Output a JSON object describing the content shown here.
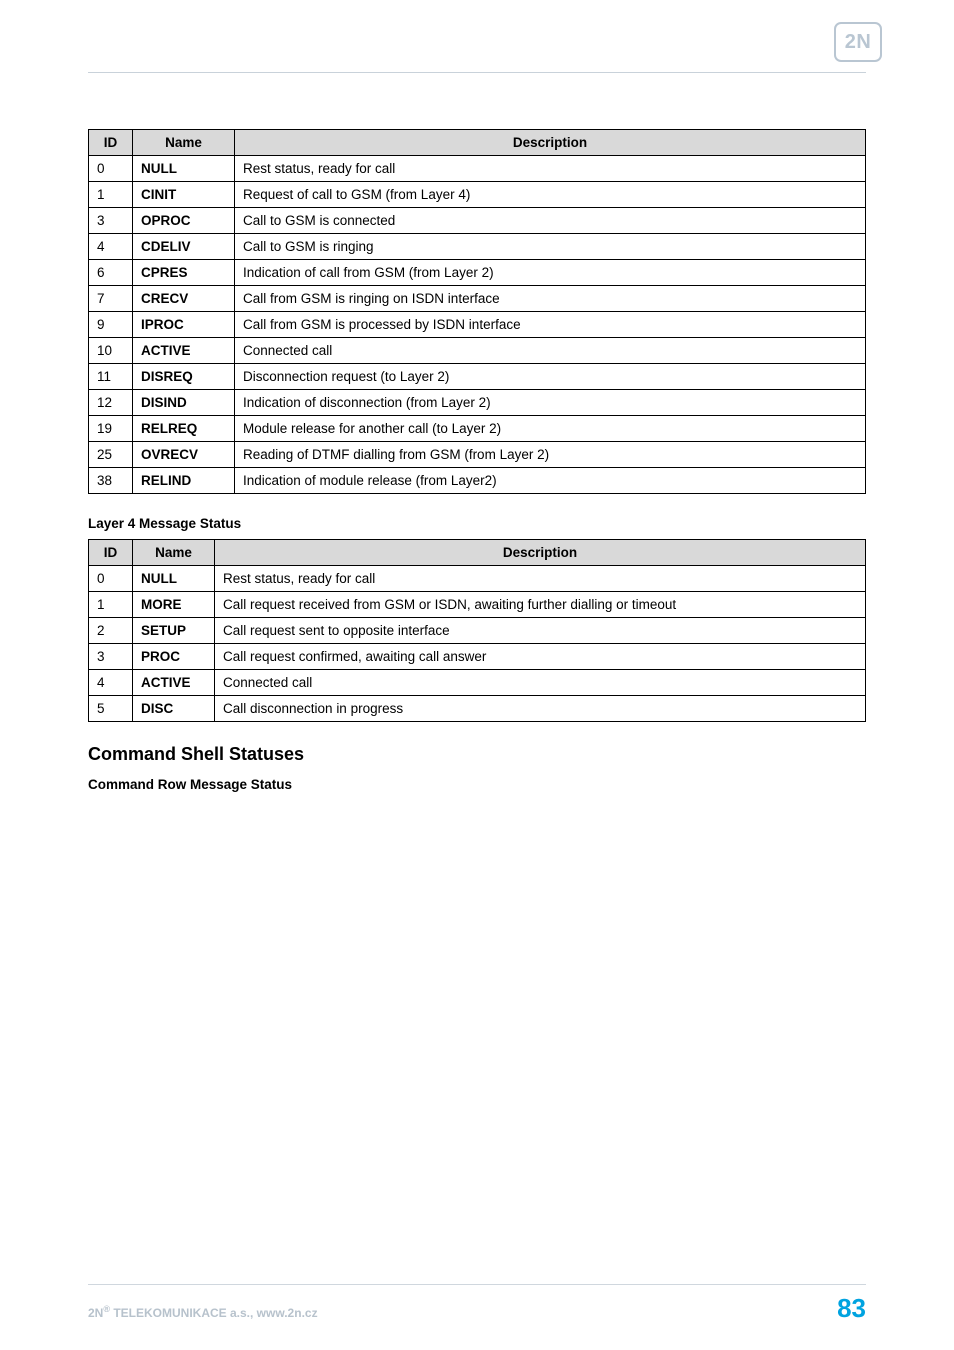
{
  "logo_text": "2N",
  "table1": {
    "headers": [
      "ID",
      "Name",
      "Description"
    ],
    "rows": [
      {
        "id": "0",
        "name": "NULL",
        "desc": "Rest status, ready for call"
      },
      {
        "id": "1",
        "name": "CINIT",
        "desc": "Request of call to GSM (from Layer 4)"
      },
      {
        "id": "3",
        "name": "OPROC",
        "desc": "Call to GSM is connected"
      },
      {
        "id": "4",
        "name": "CDELIV",
        "desc": "Call to GSM is ringing"
      },
      {
        "id": "6",
        "name": "CPRES",
        "desc": "Indication of call from GSM (from Layer 2)"
      },
      {
        "id": "7",
        "name": "CRECV",
        "desc": "Call from GSM is ringing on ISDN interface"
      },
      {
        "id": "9",
        "name": "IPROC",
        "desc": "Call from GSM is processed by ISDN interface"
      },
      {
        "id": "10",
        "name": "ACTIVE",
        "desc": "Connected call"
      },
      {
        "id": "11",
        "name": "DISREQ",
        "desc": "Disconnection request (to Layer 2)"
      },
      {
        "id": "12",
        "name": "DISIND",
        "desc": "Indication of disconnection (from Layer 2)"
      },
      {
        "id": "19",
        "name": "RELREQ",
        "desc": "Module release for another call (to Layer 2)"
      },
      {
        "id": "25",
        "name": "OVRECV",
        "desc": "Reading of DTMF dialling from GSM (from Layer 2)"
      },
      {
        "id": "38",
        "name": "RELIND",
        "desc": "Indication of module release (from Layer2)"
      }
    ]
  },
  "section1_title": "Layer 4 Message Status",
  "table2": {
    "headers": [
      "ID",
      "Name",
      "Description"
    ],
    "rows": [
      {
        "id": "0",
        "name": "NULL",
        "desc": "Rest status, ready for call"
      },
      {
        "id": "1",
        "name": "MORE",
        "desc": "Call request received from GSM or ISDN, awaiting further dialling or timeout"
      },
      {
        "id": "2",
        "name": "SETUP",
        "desc": "Call request sent to opposite interface"
      },
      {
        "id": "3",
        "name": "PROC",
        "desc": "Call request confirmed, awaiting call answer"
      },
      {
        "id": "4",
        "name": "ACTIVE",
        "desc": "Connected call"
      },
      {
        "id": "5",
        "name": "DISC",
        "desc": "Call disconnection in progress"
      }
    ]
  },
  "h2_text": "Command Shell Statuses",
  "section2_title": "Command Row Message Status",
  "footer": {
    "left_prefix": "2N",
    "left_sup": "®",
    "left_rest": " TELEKOMUNIKACE a.s., www.2n.cz",
    "page_no": "83"
  },
  "colors": {
    "header_bg": "#d9d9d9",
    "rule": "#c9d2da",
    "footer_text": "#b7c2cc",
    "page_no": "#00a3e0",
    "logo": "#b9c6d2"
  }
}
